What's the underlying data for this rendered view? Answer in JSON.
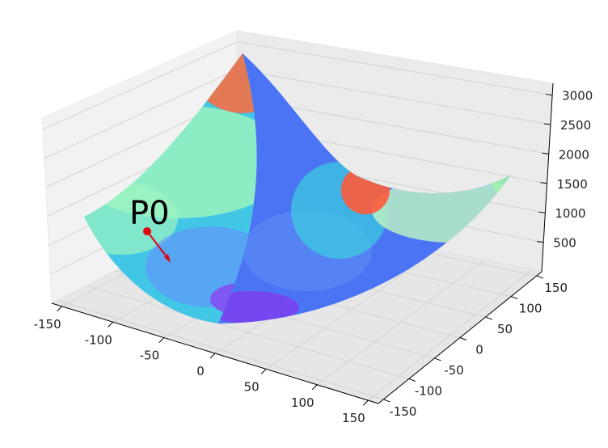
{
  "chart_data": {
    "type": "surface",
    "colormap": "rainbow",
    "grid": true,
    "x": {
      "ticks": [
        -150,
        -100,
        -50,
        0,
        50,
        100,
        150
      ],
      "range": [
        -160,
        160
      ]
    },
    "y": {
      "ticks": [
        -150,
        -100,
        -50,
        0,
        50,
        100,
        150
      ],
      "range": [
        -160,
        160
      ]
    },
    "z": {
      "ticks": [
        500,
        1000,
        1500,
        2000,
        2500,
        3000
      ],
      "range": [
        0,
        3200
      ]
    },
    "surface_samples": [
      {
        "x": -150,
        "y": -150,
        "z": 3000
      },
      {
        "x": 150,
        "y": 150,
        "z": 2300
      },
      {
        "x": -150,
        "y": 150,
        "z": 1300
      },
      {
        "x": 150,
        "y": -150,
        "z": 1300
      },
      {
        "x": 0,
        "y": 0,
        "z": 0
      }
    ],
    "annotation": {
      "label": "P0",
      "point": {
        "x": -100,
        "y": 20,
        "z": 1000
      },
      "arrow_color": "#e8000b"
    }
  }
}
